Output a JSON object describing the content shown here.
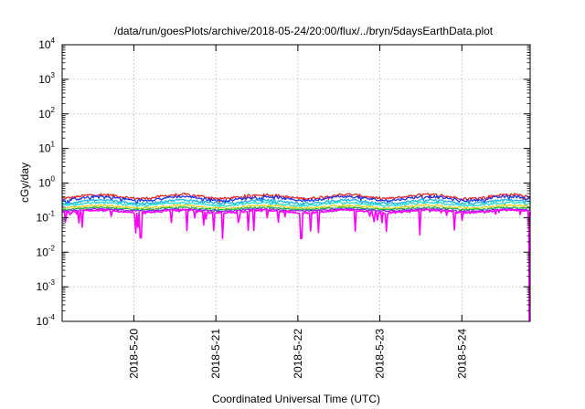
{
  "chart_data": {
    "type": "line",
    "title": "/data/run/goesPlots/archive/2018-05-24/20:00/flux/../bryn/5daysEarthData.plot",
    "xlabel": "Coordinated Universal Time (UTC)",
    "ylabel": "cGy/day",
    "y_scale": "log",
    "ylim": [
      0.0001,
      10000
    ],
    "y_ticks": [
      {
        "base": "10",
        "exp": "-4",
        "value": 0.0001
      },
      {
        "base": "10",
        "exp": "-3",
        "value": 0.001
      },
      {
        "base": "10",
        "exp": "-2",
        "value": 0.01
      },
      {
        "base": "10",
        "exp": "-1",
        "value": 0.1
      },
      {
        "base": "10",
        "exp": "0",
        "value": 1
      },
      {
        "base": "10",
        "exp": "1",
        "value": 10
      },
      {
        "base": "10",
        "exp": "2",
        "value": 100
      },
      {
        "base": "10",
        "exp": "3",
        "value": 1000
      },
      {
        "base": "10",
        "exp": "4",
        "value": 10000
      }
    ],
    "xlim": [
      "2018-05-19 03:00",
      "2018-05-24 20:00"
    ],
    "x_ticks": [
      {
        "label": "2018-5-20",
        "value": "2018-05-20 00:00"
      },
      {
        "label": "2018-5-21",
        "value": "2018-05-21 00:00"
      },
      {
        "label": "2018-5-22",
        "value": "2018-05-22 00:00"
      },
      {
        "label": "2018-5-23",
        "value": "2018-05-23 00:00"
      },
      {
        "label": "2018-5-24",
        "value": "2018-05-24 00:00"
      }
    ],
    "grid": true,
    "legend": "none",
    "series": [
      {
        "color": "#e8231f",
        "typical": 0.33,
        "low": 0.25,
        "high": 0.48
      },
      {
        "color": "#1e32f5",
        "typical": 0.29,
        "low": 0.22,
        "high": 0.42
      },
      {
        "color": "#1ab2e6",
        "typical": 0.24,
        "low": 0.19,
        "high": 0.33
      },
      {
        "color": "#26e0d0",
        "typical": 0.21,
        "low": 0.17,
        "high": 0.28
      },
      {
        "color": "#e6d21a",
        "typical": 0.18,
        "low": 0.15,
        "high": 0.23
      },
      {
        "color": "#22b24c",
        "typical": 0.165,
        "low": 0.13,
        "high": 0.2
      },
      {
        "color": "#8a2be2",
        "typical": 0.15,
        "low": 0.12,
        "high": 0.18
      },
      {
        "color": "#ff00ff",
        "typical": 0.13,
        "low": 0.03,
        "high": 0.17
      }
    ],
    "notable_dips": [
      {
        "time": "2018-05-20 02:00",
        "value": 0.026
      },
      {
        "time": "2018-05-21 02:00",
        "value": 0.025
      },
      {
        "time": "2018-05-22 01:00",
        "value": 0.025
      },
      {
        "time": "2018-05-23 02:00",
        "value": 0.04
      },
      {
        "time": "2018-05-24 20:00",
        "value": 0.0001
      }
    ]
  }
}
